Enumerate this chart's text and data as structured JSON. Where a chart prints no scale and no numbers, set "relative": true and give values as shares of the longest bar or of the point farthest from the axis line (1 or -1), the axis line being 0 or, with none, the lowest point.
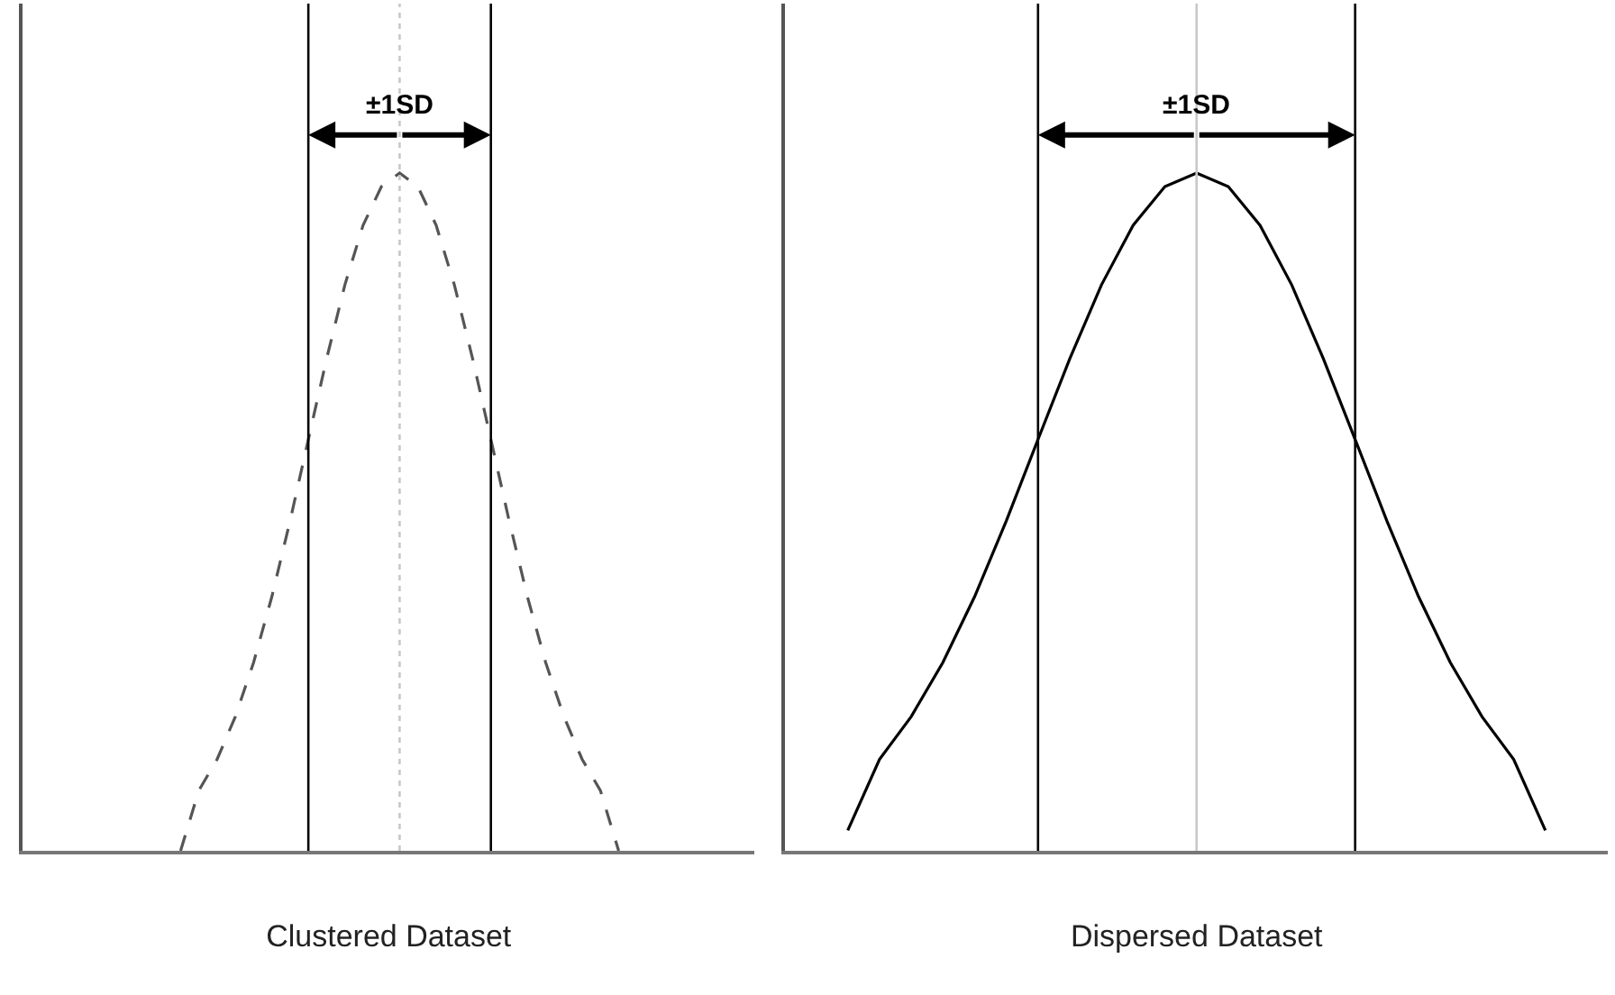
{
  "chart_data": [
    {
      "type": "line",
      "relative": true,
      "xlabel": "Clustered Dataset",
      "line_style": "dashed",
      "marker": "none",
      "tick_labels": false,
      "categories": [
        null,
        null,
        null,
        null,
        null,
        null,
        null,
        null,
        null,
        null,
        null,
        null,
        null,
        null,
        null,
        null,
        null,
        null,
        null,
        null,
        null,
        null,
        null,
        null,
        null
      ],
      "series": [
        {
          "color": "#555555",
          "values": [
            0,
            0.089,
            0.135,
            0.198,
            0.278,
            0.375,
            0.487,
            0.607,
            0.726,
            0.835,
            0.923,
            0.98,
            1,
            0.98,
            0.923,
            0.835,
            0.726,
            0.607,
            0.487,
            0.375,
            0.278,
            0.198,
            0.135,
            0.089,
            0
          ]
        }
      ],
      "annotations": [
        "±1SD"
      ]
    },
    {
      "type": "line",
      "relative": true,
      "xlabel": "Dispersed Dataset",
      "line_style": "solid",
      "marker": "none",
      "tick_labels": false,
      "categories": [
        null,
        null,
        null,
        null,
        null,
        null,
        null,
        null,
        null,
        null,
        null,
        null,
        null,
        null,
        null,
        null,
        null,
        null,
        null,
        null,
        null,
        null,
        null
      ],
      "series": [
        {
          "color": "#000000",
          "values": [
            0.03,
            0.135,
            0.198,
            0.278,
            0.375,
            0.487,
            0.607,
            0.726,
            0.835,
            0.923,
            0.98,
            1,
            0.98,
            0.923,
            0.835,
            0.726,
            0.607,
            0.487,
            0.375,
            0.278,
            0.198,
            0.135,
            0.03
          ]
        }
      ],
      "annotations": [
        "±1SD"
      ]
    }
  ]
}
